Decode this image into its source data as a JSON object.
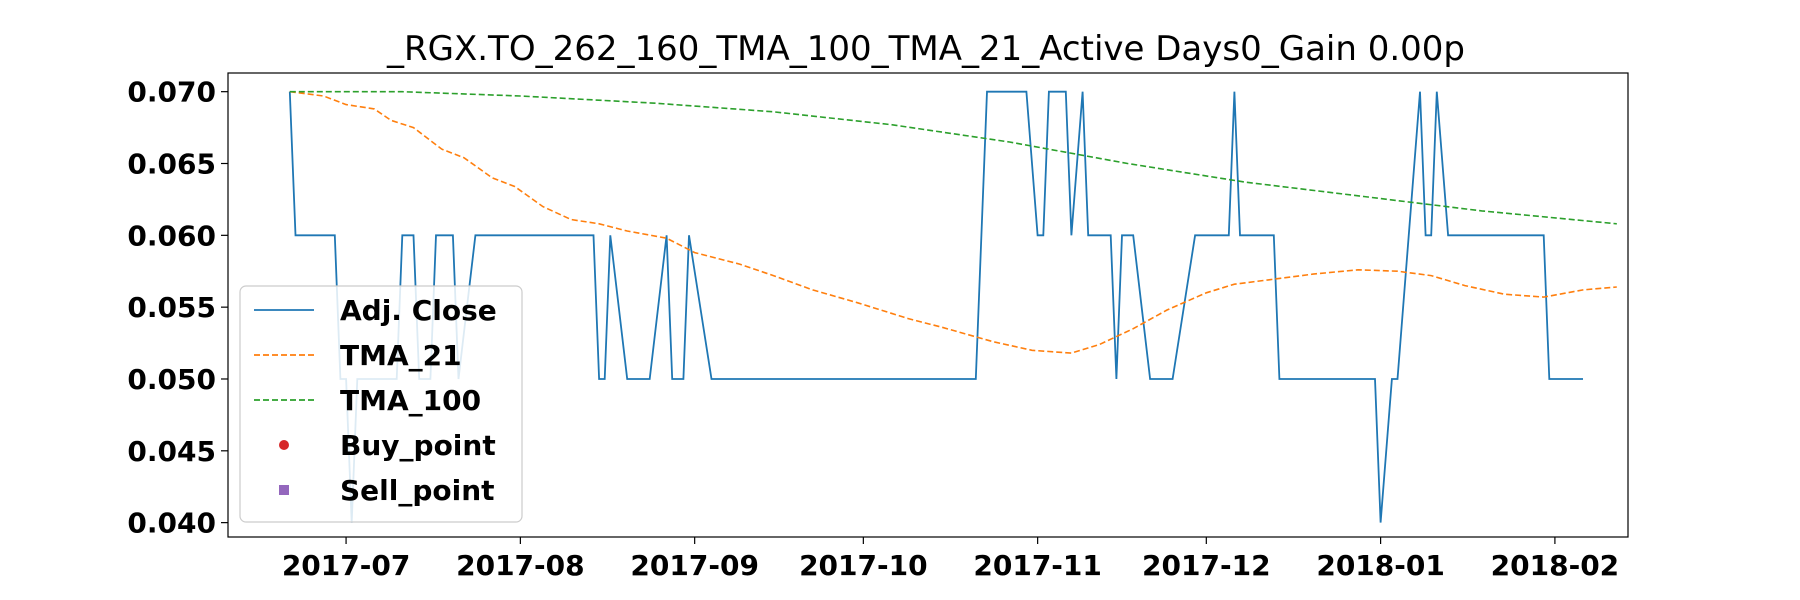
{
  "chart_data": {
    "type": "line",
    "title": "_RGX.TO_262_160_TMA_100_TMA_21_Active Days0_Gain   0.00p",
    "xlabel": "",
    "ylabel": "",
    "xlim": [
      "2017-06-10",
      "2018-02-14"
    ],
    "ylim": [
      0.039,
      0.0713
    ],
    "grid": false,
    "legend_position": "lower-left",
    "x_ticks": [
      "2017-07",
      "2017-08",
      "2017-09",
      "2017-10",
      "2017-11",
      "2017-12",
      "2018-01",
      "2018-02"
    ],
    "y_ticks": [
      "0.040",
      "0.045",
      "0.050",
      "0.055",
      "0.060",
      "0.065",
      "0.070"
    ],
    "series": [
      {
        "name": "Adj. Close",
        "style": "solid",
        "color": "#1f77b4",
        "points": [
          [
            "2017-06-21",
            0.07
          ],
          [
            "2017-06-22",
            0.06
          ],
          [
            "2017-06-29",
            0.06
          ],
          [
            "2017-06-30",
            0.05
          ],
          [
            "2017-07-01",
            0.05
          ],
          [
            "2017-07-02",
            0.04
          ],
          [
            "2017-07-03",
            0.05
          ],
          [
            "2017-07-10",
            0.05
          ],
          [
            "2017-07-11",
            0.06
          ],
          [
            "2017-07-13",
            0.06
          ],
          [
            "2017-07-14",
            0.05
          ],
          [
            "2017-07-16",
            0.05
          ],
          [
            "2017-07-17",
            0.06
          ],
          [
            "2017-07-20",
            0.06
          ],
          [
            "2017-07-21",
            0.05
          ],
          [
            "2017-07-24",
            0.06
          ],
          [
            "2017-08-14",
            0.06
          ],
          [
            "2017-08-15",
            0.05
          ],
          [
            "2017-08-16",
            0.05
          ],
          [
            "2017-08-17",
            0.06
          ],
          [
            "2017-08-20",
            0.05
          ],
          [
            "2017-08-24",
            0.05
          ],
          [
            "2017-08-27",
            0.06
          ],
          [
            "2017-08-28",
            0.05
          ],
          [
            "2017-08-30",
            0.05
          ],
          [
            "2017-08-31",
            0.06
          ],
          [
            "2017-09-04",
            0.05
          ],
          [
            "2017-10-21",
            0.05
          ],
          [
            "2017-10-23",
            0.07
          ],
          [
            "2017-10-30",
            0.07
          ],
          [
            "2017-11-01",
            0.06
          ],
          [
            "2017-11-02",
            0.06
          ],
          [
            "2017-11-03",
            0.07
          ],
          [
            "2017-11-06",
            0.07
          ],
          [
            "2017-11-07",
            0.06
          ],
          [
            "2017-11-09",
            0.07
          ],
          [
            "2017-11-10",
            0.06
          ],
          [
            "2017-11-14",
            0.06
          ],
          [
            "2017-11-15",
            0.05
          ],
          [
            "2017-11-16",
            0.06
          ],
          [
            "2017-11-18",
            0.06
          ],
          [
            "2017-11-21",
            0.05
          ],
          [
            "2017-11-25",
            0.05
          ],
          [
            "2017-11-29",
            0.06
          ],
          [
            "2017-12-05",
            0.06
          ],
          [
            "2017-12-06",
            0.07
          ],
          [
            "2017-12-07",
            0.06
          ],
          [
            "2017-12-13",
            0.06
          ],
          [
            "2017-12-14",
            0.05
          ],
          [
            "2017-12-31",
            0.05
          ],
          [
            "2018-01-01",
            0.04
          ],
          [
            "2018-01-03",
            0.05
          ],
          [
            "2018-01-04",
            0.05
          ],
          [
            "2018-01-08",
            0.07
          ],
          [
            "2018-01-09",
            0.06
          ],
          [
            "2018-01-10",
            0.06
          ],
          [
            "2018-01-11",
            0.07
          ],
          [
            "2018-01-13",
            0.06
          ],
          [
            "2018-01-30",
            0.06
          ],
          [
            "2018-01-31",
            0.05
          ],
          [
            "2018-02-06",
            0.05
          ]
        ]
      },
      {
        "name": "TMA_21",
        "style": "dashed",
        "color": "#ff7f0e",
        "points": [
          [
            "2017-06-21",
            0.07
          ],
          [
            "2017-06-27",
            0.0697
          ],
          [
            "2017-07-01",
            0.0691
          ],
          [
            "2017-07-06",
            0.0688
          ],
          [
            "2017-07-09",
            0.068
          ],
          [
            "2017-07-13",
            0.0675
          ],
          [
            "2017-07-18",
            0.066
          ],
          [
            "2017-07-22",
            0.0654
          ],
          [
            "2017-07-27",
            0.064
          ],
          [
            "2017-07-31",
            0.0634
          ],
          [
            "2017-08-05",
            0.062
          ],
          [
            "2017-08-10",
            0.0611
          ],
          [
            "2017-08-15",
            0.0608
          ],
          [
            "2017-08-20",
            0.0603
          ],
          [
            "2017-08-27",
            0.0598
          ],
          [
            "2017-09-01",
            0.0588
          ],
          [
            "2017-09-09",
            0.058
          ],
          [
            "2017-09-15",
            0.0572
          ],
          [
            "2017-09-22",
            0.0562
          ],
          [
            "2017-09-30",
            0.0553
          ],
          [
            "2017-10-09",
            0.0542
          ],
          [
            "2017-10-15",
            0.0536
          ],
          [
            "2017-10-24",
            0.0526
          ],
          [
            "2017-10-31",
            0.052
          ],
          [
            "2017-11-07",
            0.0518
          ],
          [
            "2017-11-12",
            0.0524
          ],
          [
            "2017-11-18",
            0.0535
          ],
          [
            "2017-11-24",
            0.0548
          ],
          [
            "2017-12-01",
            0.056
          ],
          [
            "2017-12-06",
            0.0566
          ],
          [
            "2017-12-12",
            0.0569
          ],
          [
            "2017-12-20",
            0.0573
          ],
          [
            "2017-12-28",
            0.0576
          ],
          [
            "2018-01-04",
            0.0575
          ],
          [
            "2018-01-10",
            0.0572
          ],
          [
            "2018-01-16",
            0.0565
          ],
          [
            "2018-01-23",
            0.0559
          ],
          [
            "2018-01-30",
            0.0557
          ],
          [
            "2018-02-06",
            0.0562
          ],
          [
            "2018-02-12",
            0.0564
          ]
        ]
      },
      {
        "name": "TMA_100",
        "style": "dashed",
        "color": "#2ca02c",
        "points": [
          [
            "2017-06-21",
            0.07
          ],
          [
            "2017-07-11",
            0.07
          ],
          [
            "2017-08-01",
            0.0697
          ],
          [
            "2017-08-25",
            0.0692
          ],
          [
            "2017-09-15",
            0.0686
          ],
          [
            "2017-10-06",
            0.0677
          ],
          [
            "2017-10-27",
            0.0665
          ],
          [
            "2017-11-17",
            0.065
          ],
          [
            "2017-12-08",
            0.0637
          ],
          [
            "2017-12-29",
            0.0627
          ],
          [
            "2018-01-19",
            0.0617
          ],
          [
            "2018-02-12",
            0.0608
          ]
        ]
      },
      {
        "name": "Buy_point",
        "style": "marker-circle",
        "color": "#d62728",
        "points": []
      },
      {
        "name": "Sell_point",
        "style": "marker-square",
        "color": "#9467bd",
        "points": []
      }
    ]
  }
}
